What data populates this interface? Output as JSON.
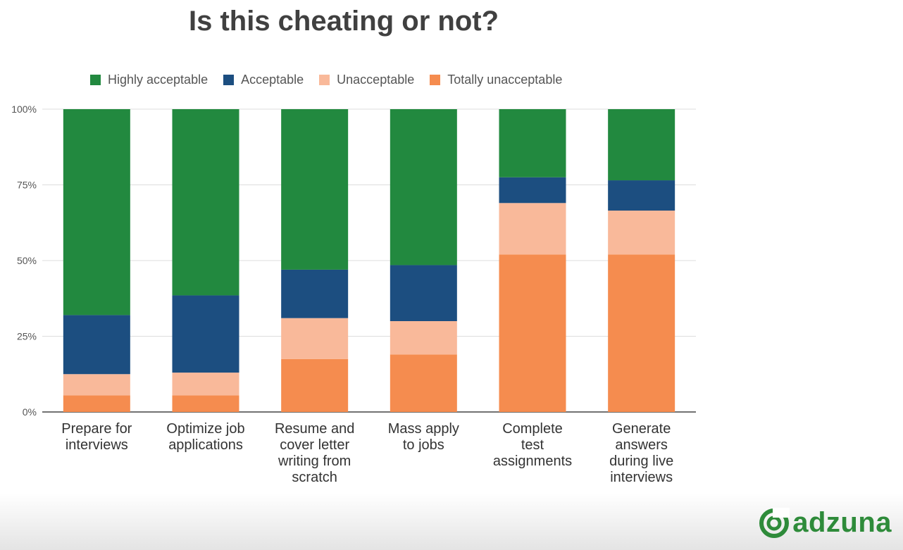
{
  "chart_data": {
    "type": "bar",
    "stacked": true,
    "title": "Is this cheating or not?",
    "categories": [
      "Prepare for interviews",
      "Optimize job applications",
      "Resume and cover letter writing from scratch",
      "Mass apply to jobs",
      "Complete test assignments",
      "Generate answers during live interviews"
    ],
    "category_lines": [
      [
        "Prepare for",
        "interviews"
      ],
      [
        "Optimize job",
        "applications"
      ],
      [
        "Resume and",
        "cover letter",
        "writing from",
        "scratch"
      ],
      [
        "Mass apply",
        "to jobs"
      ],
      [
        "Complete",
        "test",
        "assignments"
      ],
      [
        "Generate",
        "answers",
        "during live",
        "interviews"
      ]
    ],
    "series": [
      {
        "name": "Totally unacceptable",
        "color": "#f58c4f",
        "values": [
          5.5,
          5.5,
          17.5,
          19,
          52,
          52
        ]
      },
      {
        "name": "Unacceptable",
        "color": "#f9b99a",
        "values": [
          7,
          7.5,
          13.5,
          11,
          17,
          14.5
        ]
      },
      {
        "name": "Acceptable",
        "color": "#1c4e80",
        "values": [
          19.5,
          25.5,
          16,
          18.5,
          8.5,
          10
        ]
      },
      {
        "name": "Highly acceptable",
        "color": "#22893f",
        "values": [
          68,
          61.5,
          53,
          51.5,
          22.5,
          23.5
        ]
      }
    ],
    "legend_order": [
      "Highly acceptable",
      "Acceptable",
      "Unacceptable",
      "Totally unacceptable"
    ],
    "yticks": [
      "0%",
      "25%",
      "50%",
      "75%",
      "100%"
    ],
    "ylim": [
      0,
      100
    ],
    "grid": true,
    "legend_position": "top"
  },
  "brand": {
    "logo_text": "adzuna",
    "logo_icon": "adzuna-swirl-icon",
    "color": "#2e8b3a"
  }
}
